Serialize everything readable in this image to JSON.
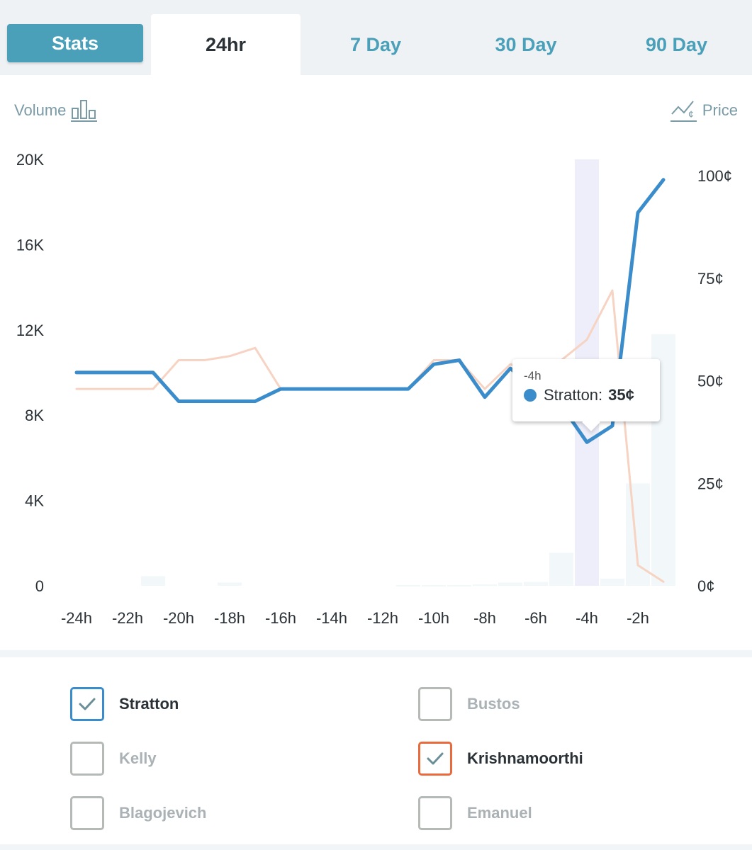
{
  "tabs": [
    {
      "label": "Stats"
    },
    {
      "label": "24hr"
    },
    {
      "label": "7 Day"
    },
    {
      "label": "30 Day"
    },
    {
      "label": "90 Day"
    }
  ],
  "active_tab": "24hr",
  "legend": {
    "volume_label": "Volume",
    "price_label": "Price"
  },
  "tooltip": {
    "time": "-4h",
    "series": "Stratton:",
    "value": "35¢",
    "color": "#3a8ccb"
  },
  "chart_data": {
    "type": "line",
    "x_labels": [
      "-24h",
      "-22h",
      "-20h",
      "-18h",
      "-16h",
      "-14h",
      "-12h",
      "-10h",
      "-8h",
      "-6h",
      "-4h",
      "-2h"
    ],
    "x": [
      -24,
      -23,
      -22,
      -21,
      -20,
      -19,
      -18,
      -17,
      -16,
      -15,
      -14,
      -13,
      -12,
      -11,
      -10,
      -9,
      -8,
      -7,
      -6,
      -5,
      -4,
      -3,
      -2,
      -1
    ],
    "left_axis": {
      "ticks": [
        "20K",
        "16K",
        "12K",
        "8K",
        "4K",
        "0"
      ],
      "range": [
        0,
        20000
      ]
    },
    "right_axis": {
      "ticks": [
        "100¢",
        "75¢",
        "50¢",
        "25¢",
        "0¢"
      ],
      "range": [
        0,
        100
      ]
    },
    "series": [
      {
        "color": "#3a8ccb",
        "axis": "price",
        "values": [
          52,
          52,
          52,
          52,
          45,
          45,
          45,
          45,
          48,
          48,
          48,
          48,
          48,
          48,
          54,
          55,
          46,
          53,
          48,
          44,
          35,
          39,
          91,
          99
        ]
      },
      {
        "color": "#f6d3c2",
        "axis": "price",
        "values": [
          48,
          48,
          48,
          48,
          55,
          55,
          56,
          58,
          48,
          48,
          48,
          48,
          48,
          48,
          55,
          55,
          48,
          54,
          52,
          55,
          60,
          72,
          5,
          1
        ]
      }
    ],
    "volume": {
      "axis": "volume",
      "values": [
        0,
        0,
        0,
        450,
        0,
        0,
        150,
        0,
        0,
        0,
        0,
        0,
        0,
        30,
        30,
        30,
        60,
        150,
        180,
        1550,
        20000,
        340,
        4800,
        11800
      ],
      "highlight_index": 20
    }
  },
  "candidates": [
    {
      "name": "Stratton",
      "checked": true,
      "color": "#3a8ccb"
    },
    {
      "name": "Bustos",
      "checked": false,
      "color": "#b6bab7"
    },
    {
      "name": "Kelly",
      "checked": false,
      "color": "#b6bab7"
    },
    {
      "name": "Krishnamoorthi",
      "checked": true,
      "color": "#e96a3c"
    },
    {
      "name": "Blagojevich",
      "checked": false,
      "color": "#b6bab7"
    },
    {
      "name": "Emanuel",
      "checked": false,
      "color": "#b6bab7"
    }
  ]
}
